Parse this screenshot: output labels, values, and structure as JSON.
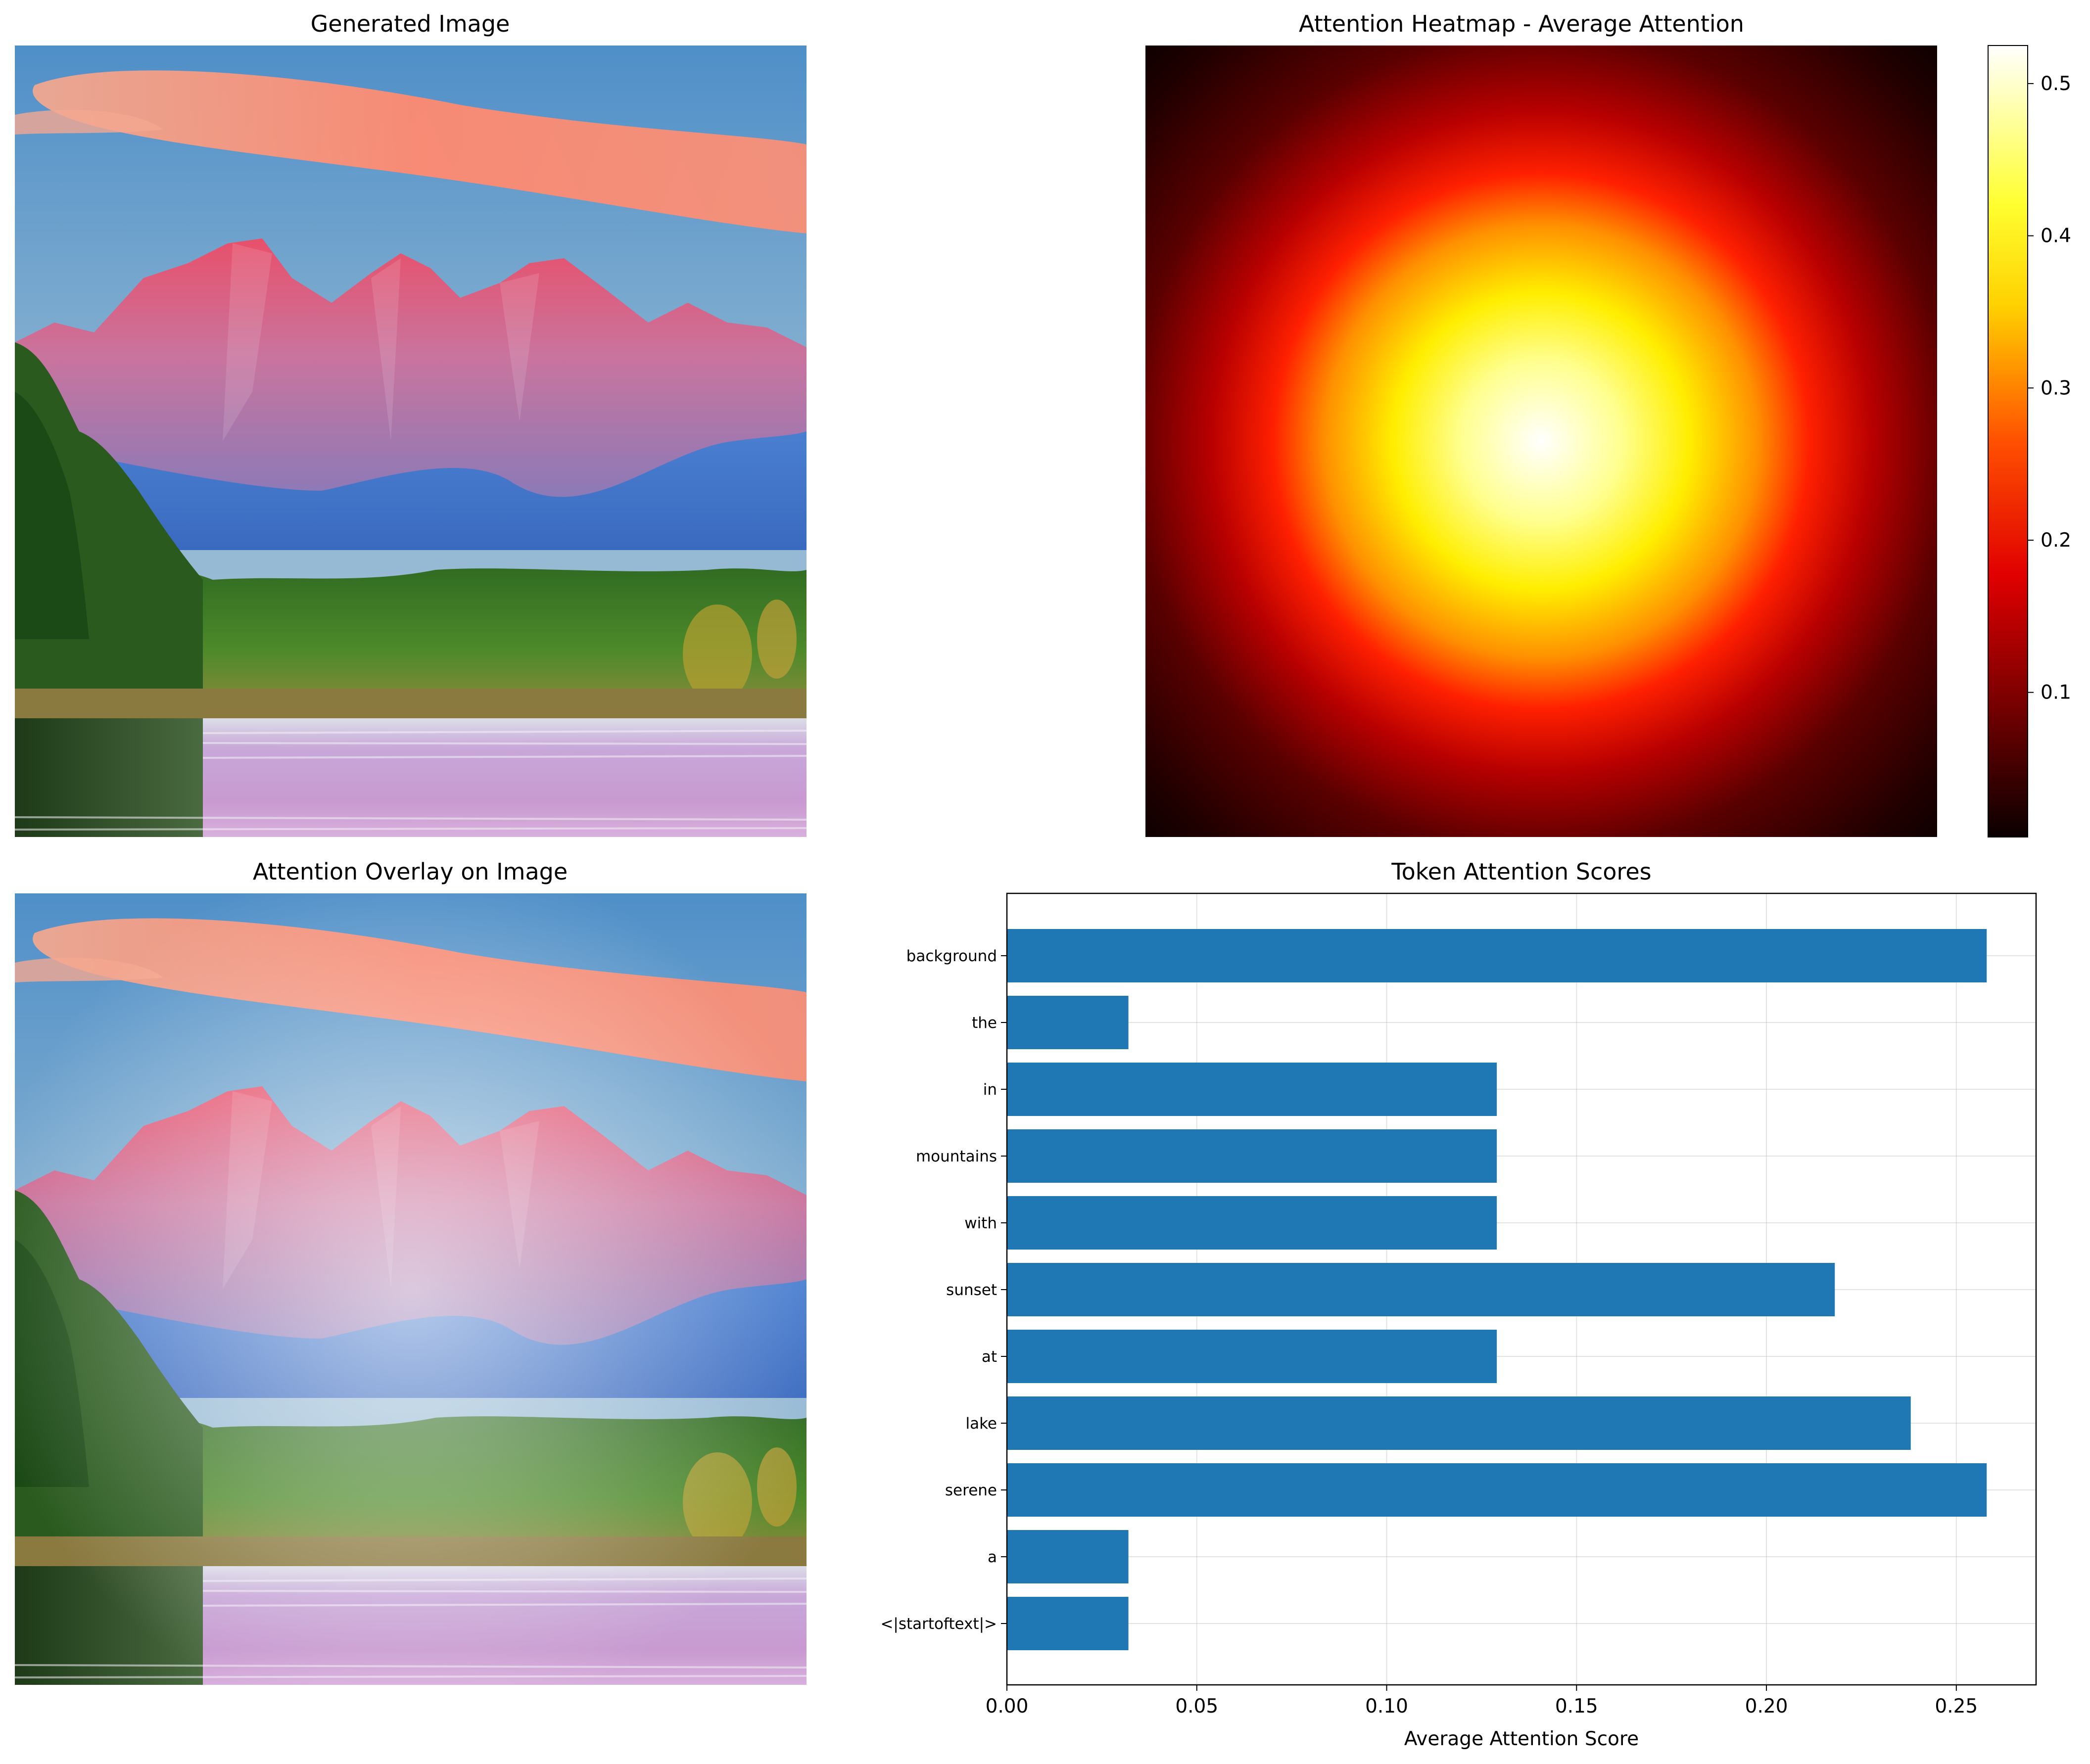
{
  "panels": {
    "generated": {
      "title": "Generated Image"
    },
    "heatmap": {
      "title": "Attention Heatmap - Average Attention"
    },
    "overlay": {
      "title": "Attention Overlay on Image"
    }
  },
  "colorbar": {
    "min": 0.005,
    "max": 0.525,
    "colormap": "hot",
    "ticks": [
      {
        "value": 0.1,
        "label": "0.1"
      },
      {
        "value": 0.2,
        "label": "0.2"
      },
      {
        "value": 0.3,
        "label": "0.3"
      },
      {
        "value": 0.4,
        "label": "0.4"
      },
      {
        "value": 0.5,
        "label": "0.5"
      }
    ]
  },
  "chart_data": {
    "type": "bar",
    "orientation": "horizontal",
    "title": "Token Attention Scores",
    "xlabel": "Average Attention Score",
    "ylabel": "",
    "xlim": [
      0.0,
      0.271
    ],
    "grid": true,
    "color": "#1f77b4",
    "categories": [
      "<|startoftext|>",
      "a",
      "serene",
      "lake",
      "at",
      "sunset",
      "with",
      "mountains",
      "in",
      "the",
      "background"
    ],
    "values": [
      0.032,
      0.032,
      0.258,
      0.238,
      0.129,
      0.218,
      0.129,
      0.129,
      0.129,
      0.032,
      0.258
    ],
    "xticks": [
      {
        "value": 0.0,
        "label": "0.00"
      },
      {
        "value": 0.05,
        "label": "0.05"
      },
      {
        "value": 0.1,
        "label": "0.10"
      },
      {
        "value": 0.15,
        "label": "0.15"
      },
      {
        "value": 0.2,
        "label": "0.20"
      },
      {
        "value": 0.25,
        "label": "0.25"
      }
    ]
  }
}
